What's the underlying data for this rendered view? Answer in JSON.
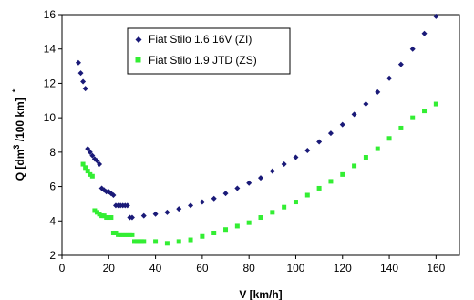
{
  "chart_data": {
    "type": "scatter",
    "title": "",
    "xlabel": "V   [km/h]",
    "ylabel": "Q   [dm",
    "ylabel_sup": "3",
    "ylabel_rest": " /100 km]",
    "ylabel_marker": "*",
    "xlim": [
      0,
      170
    ],
    "ylim": [
      2,
      16
    ],
    "x_ticks": [
      "0",
      "20",
      "40",
      "60",
      "80",
      "100",
      "120",
      "140",
      "160"
    ],
    "y_ticks": [
      "2",
      "4",
      "6",
      "8",
      "10",
      "12",
      "14",
      "16"
    ],
    "grid": false,
    "legend_position": "top-left",
    "series": [
      {
        "name": "Fiat Stilo 1.6 16V (ZI)",
        "marker": "diamond",
        "color": "#1a1a78",
        "x": [
          7,
          8,
          9,
          10,
          11,
          12,
          13,
          14,
          15,
          16,
          17,
          18,
          19,
          20,
          21,
          22,
          23,
          24,
          25,
          26,
          27,
          28,
          29,
          30,
          35,
          40,
          45,
          50,
          55,
          60,
          65,
          70,
          75,
          80,
          85,
          90,
          95,
          100,
          105,
          110,
          115,
          120,
          125,
          130,
          135,
          140,
          145,
          150,
          155,
          160
        ],
        "y": [
          13.2,
          12.6,
          12.1,
          11.7,
          8.2,
          8.0,
          7.8,
          7.6,
          7.5,
          7.3,
          5.9,
          5.8,
          5.7,
          5.7,
          5.6,
          5.5,
          4.9,
          4.9,
          4.9,
          4.9,
          4.9,
          4.9,
          4.2,
          4.2,
          4.3,
          4.4,
          4.5,
          4.7,
          4.9,
          5.1,
          5.3,
          5.6,
          5.9,
          6.2,
          6.5,
          6.9,
          7.3,
          7.7,
          8.1,
          8.6,
          9.1,
          9.6,
          10.2,
          10.8,
          11.5,
          12.3,
          13.1,
          14.0,
          14.9,
          15.9
        ]
      },
      {
        "name": "Fiat Stilo 1.9 JTD (ZS)",
        "marker": "square",
        "color": "#33ee33",
        "x": [
          9,
          10,
          11,
          12,
          13,
          14,
          15,
          16,
          17,
          18,
          19,
          20,
          21,
          22,
          23,
          24,
          25,
          26,
          27,
          28,
          29,
          30,
          31,
          32,
          33,
          34,
          35,
          40,
          45,
          50,
          55,
          60,
          65,
          70,
          75,
          80,
          85,
          90,
          95,
          100,
          105,
          110,
          115,
          120,
          125,
          130,
          135,
          140,
          145,
          150,
          155,
          160
        ],
        "y": [
          7.3,
          7.1,
          6.9,
          6.7,
          6.6,
          4.6,
          4.5,
          4.4,
          4.3,
          4.3,
          4.2,
          4.2,
          4.2,
          3.3,
          3.3,
          3.2,
          3.2,
          3.2,
          3.2,
          3.2,
          3.2,
          3.2,
          2.8,
          2.8,
          2.8,
          2.8,
          2.8,
          2.8,
          2.7,
          2.8,
          2.9,
          3.1,
          3.3,
          3.5,
          3.7,
          3.9,
          4.2,
          4.5,
          4.8,
          5.1,
          5.5,
          5.9,
          6.3,
          6.7,
          7.2,
          7.7,
          8.2,
          8.8,
          9.4,
          10.0,
          10.4,
          10.8
        ]
      }
    ]
  }
}
